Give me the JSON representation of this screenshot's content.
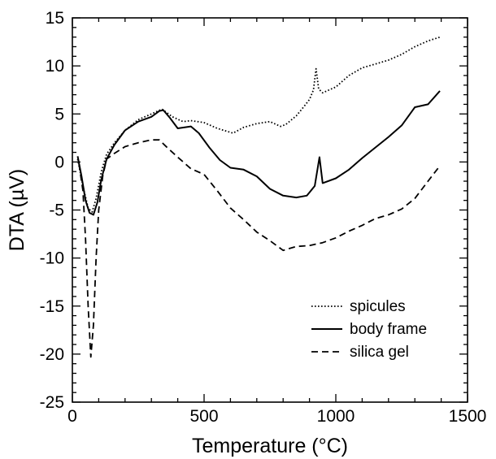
{
  "chart_data": {
    "type": "line",
    "title": "",
    "xlabel": "Temperature (°C)",
    "ylabel": "DTA (µV)",
    "xlim": [
      0,
      1500
    ],
    "ylim": [
      -25,
      15
    ],
    "x_ticks": [
      0,
      500,
      1000,
      1500
    ],
    "y_ticks": [
      -25,
      -20,
      -15,
      -10,
      -5,
      0,
      5,
      10,
      15
    ],
    "grid": false,
    "legend_position": "bottom-right",
    "series": [
      {
        "name": "spicules",
        "style": "dotted",
        "color": "#000000",
        "points": [
          [
            20,
            0.3
          ],
          [
            40,
            -2.5
          ],
          [
            60,
            -4.8
          ],
          [
            75,
            -5.2
          ],
          [
            90,
            -3.8
          ],
          [
            110,
            -1
          ],
          [
            130,
            0.8
          ],
          [
            160,
            2
          ],
          [
            200,
            3.3
          ],
          [
            250,
            4.4
          ],
          [
            300,
            5
          ],
          [
            340,
            5.5
          ],
          [
            380,
            4.7
          ],
          [
            420,
            4.2
          ],
          [
            450,
            4.3
          ],
          [
            500,
            4.1
          ],
          [
            550,
            3.5
          ],
          [
            610,
            3.0
          ],
          [
            650,
            3.6
          ],
          [
            700,
            4.0
          ],
          [
            750,
            4.2
          ],
          [
            790,
            3.7
          ],
          [
            810,
            3.9
          ],
          [
            850,
            4.8
          ],
          [
            880,
            5.8
          ],
          [
            900,
            6.5
          ],
          [
            915,
            7.5
          ],
          [
            925,
            9.7
          ],
          [
            935,
            7.6
          ],
          [
            950,
            7.2
          ],
          [
            1000,
            7.8
          ],
          [
            1050,
            9.0
          ],
          [
            1100,
            9.8
          ],
          [
            1150,
            10.2
          ],
          [
            1200,
            10.6
          ],
          [
            1250,
            11.2
          ],
          [
            1300,
            12
          ],
          [
            1350,
            12.6
          ],
          [
            1395,
            13.0
          ]
        ]
      },
      {
        "name": "body frame",
        "style": "solid",
        "color": "#000000",
        "points": [
          [
            20,
            0.6
          ],
          [
            35,
            -1.5
          ],
          [
            50,
            -4
          ],
          [
            65,
            -5.3
          ],
          [
            80,
            -5.5
          ],
          [
            95,
            -4.2
          ],
          [
            110,
            -1.8
          ],
          [
            130,
            0.3
          ],
          [
            160,
            1.8
          ],
          [
            200,
            3.3
          ],
          [
            250,
            4.2
          ],
          [
            300,
            4.7
          ],
          [
            330,
            5.3
          ],
          [
            345,
            5.4
          ],
          [
            370,
            4.6
          ],
          [
            400,
            3.5
          ],
          [
            450,
            3.7
          ],
          [
            480,
            3
          ],
          [
            520,
            1.5
          ],
          [
            560,
            0.2
          ],
          [
            600,
            -0.6
          ],
          [
            650,
            -0.8
          ],
          [
            700,
            -1.5
          ],
          [
            750,
            -2.8
          ],
          [
            800,
            -3.5
          ],
          [
            850,
            -3.7
          ],
          [
            890,
            -3.5
          ],
          [
            920,
            -2.5
          ],
          [
            938,
            0.5
          ],
          [
            950,
            -2.2
          ],
          [
            1000,
            -1.7
          ],
          [
            1050,
            -0.8
          ],
          [
            1100,
            0.4
          ],
          [
            1150,
            1.5
          ],
          [
            1200,
            2.6
          ],
          [
            1250,
            3.8
          ],
          [
            1300,
            5.7
          ],
          [
            1350,
            6.0
          ],
          [
            1395,
            7.4
          ]
        ]
      },
      {
        "name": "silica gel",
        "style": "dashed",
        "color": "#000000",
        "points": [
          [
            25,
            -0.2
          ],
          [
            40,
            -3
          ],
          [
            50,
            -8
          ],
          [
            60,
            -15
          ],
          [
            70,
            -20.3
          ],
          [
            80,
            -17
          ],
          [
            90,
            -10
          ],
          [
            100,
            -5
          ],
          [
            115,
            -1.5
          ],
          [
            130,
            0.3
          ],
          [
            160,
            0.9
          ],
          [
            200,
            1.6
          ],
          [
            250,
            2.0
          ],
          [
            300,
            2.3
          ],
          [
            330,
            2.3
          ],
          [
            360,
            1.5
          ],
          [
            400,
            0.5
          ],
          [
            450,
            -0.7
          ],
          [
            500,
            -1.3
          ],
          [
            550,
            -3
          ],
          [
            600,
            -4.8
          ],
          [
            650,
            -6.0
          ],
          [
            700,
            -7.3
          ],
          [
            750,
            -8.2
          ],
          [
            800,
            -9.2
          ],
          [
            850,
            -8.8
          ],
          [
            900,
            -8.7
          ],
          [
            950,
            -8.4
          ],
          [
            1000,
            -7.9
          ],
          [
            1050,
            -7.2
          ],
          [
            1100,
            -6.6
          ],
          [
            1150,
            -5.9
          ],
          [
            1200,
            -5.5
          ],
          [
            1250,
            -4.9
          ],
          [
            1300,
            -3.8
          ],
          [
            1350,
            -2.0
          ],
          [
            1395,
            -0.4
          ]
        ]
      }
    ]
  }
}
